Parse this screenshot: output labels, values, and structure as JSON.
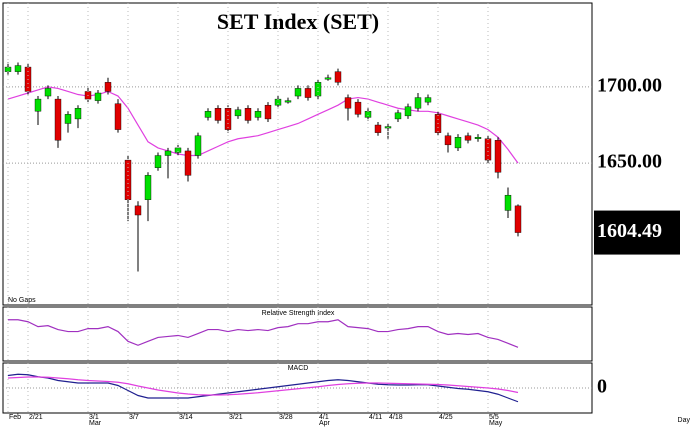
{
  "chart_data": [
    {
      "type": "candlestick",
      "title": "SET  Index  (SET)",
      "note": "No Gaps",
      "categories": [
        "Feb",
        null,
        "2/21",
        null,
        null,
        null,
        null,
        null,
        "3/1",
        null,
        null,
        null,
        "3/7",
        null,
        null,
        null,
        null,
        "3/14",
        null,
        null,
        null,
        null,
        "3/21",
        null,
        null,
        null,
        null,
        "3/28",
        null,
        null,
        null,
        "4/1",
        null,
        null,
        null,
        null,
        "4/11",
        null,
        "4/18",
        null,
        null,
        null,
        null,
        "4/25",
        null,
        null,
        null,
        null,
        "5/5",
        null,
        null,
        null
      ],
      "months": [
        null,
        null,
        null,
        null,
        null,
        null,
        null,
        null,
        "Mar",
        null,
        null,
        null,
        null,
        null,
        null,
        null,
        null,
        null,
        null,
        null,
        null,
        null,
        null,
        null,
        null,
        null,
        null,
        null,
        null,
        null,
        null,
        "Apr",
        null,
        null,
        null,
        null,
        null,
        null,
        null,
        null,
        null,
        null,
        null,
        null,
        null,
        null,
        null,
        null,
        "May",
        null,
        null,
        null
      ],
      "open": [
        1710,
        1710,
        1713,
        1684,
        1694,
        1692,
        1676,
        1679,
        1697,
        1691,
        1703,
        1689,
        1652,
        1622,
        1626,
        1647,
        1655,
        1657,
        1658,
        1655,
        1680,
        1686,
        1686,
        1681,
        1686,
        1680,
        1688,
        1688,
        1690,
        1694,
        1699,
        1694,
        1705,
        1710,
        1693,
        1690,
        1680,
        1675,
        1673,
        1679,
        1681,
        1686,
        1690,
        1682,
        1668,
        1660,
        1668,
        1666,
        1666,
        1665,
        1619,
        1622
      ],
      "high": [
        1716,
        1716,
        1715,
        1694,
        1701,
        1694,
        1684,
        1688,
        1700,
        1698,
        1706,
        1692,
        1655,
        1625,
        1644,
        1657,
        1660,
        1662,
        1660,
        1670,
        1686,
        1688,
        1688,
        1687,
        1688,
        1686,
        1690,
        1694,
        1693,
        1701,
        1701,
        1705,
        1708,
        1712,
        1695,
        1692,
        1686,
        1677,
        1676,
        1685,
        1689,
        1696,
        1695,
        1684,
        1670,
        1669,
        1670,
        1669,
        1668,
        1667,
        1634,
        1623
      ],
      "low": [
        1708,
        1708,
        1695,
        1675,
        1692,
        1660,
        1670,
        1673,
        1690,
        1689,
        1695,
        1670,
        1612,
        1579,
        1612,
        1645,
        1640,
        1655,
        1638,
        1653,
        1678,
        1676,
        1670,
        1679,
        1676,
        1678,
        1677,
        1686,
        1689,
        1692,
        1691,
        1692,
        1704,
        1701,
        1678,
        1680,
        1678,
        1668,
        1666,
        1677,
        1679,
        1684,
        1688,
        1668,
        1657,
        1658,
        1663,
        1664,
        1650,
        1640,
        1614,
        1602
      ],
      "close": [
        1713,
        1714,
        1697,
        1692,
        1699,
        1665,
        1682,
        1686,
        1692,
        1696,
        1697,
        1672,
        1626,
        1616,
        1642,
        1655,
        1658,
        1660,
        1642,
        1668,
        1684,
        1678,
        1672,
        1685,
        1678,
        1684,
        1679,
        1692,
        1691,
        1699,
        1693,
        1703,
        1706,
        1703,
        1686,
        1682,
        1684,
        1670,
        1674,
        1683,
        1687,
        1693,
        1693,
        1670,
        1662,
        1667,
        1665,
        1667,
        1652,
        1644,
        1629,
        1604.49
      ],
      "up_color": "#00e000",
      "down_color": "#e00000",
      "moving_average": {
        "color": "#e040e0",
        "values": [
          1692,
          1694,
          1696,
          1698,
          1700,
          1699,
          1697,
          1695,
          1694,
          1695,
          1697,
          1694,
          1686,
          1675,
          1664,
          1660,
          1658,
          1656,
          1655,
          1655,
          1658,
          1661,
          1664,
          1666,
          1667,
          1668,
          1670,
          1672,
          1674,
          1676,
          1679,
          1682,
          1685,
          1688,
          1692,
          1693,
          1692,
          1690,
          1688,
          1686,
          1685,
          1684,
          1684,
          1683,
          1681,
          1679,
          1677,
          1675,
          1672,
          1667,
          1659,
          1650
        ]
      },
      "ylim": [
        1557,
        1755
      ],
      "yticks": [
        {
          "value": 1650,
          "label": "1650.00"
        },
        {
          "value": 1700,
          "label": "1700.00"
        }
      ],
      "last_price": {
        "value": 1604.49,
        "label": "1604.49"
      },
      "x_axis_label": "Day",
      "grid": true
    },
    {
      "type": "line",
      "title": "Relative Strength Index",
      "ylim": [
        20,
        75
      ],
      "series": [
        {
          "color": "#a030c0",
          "values": [
            62,
            62,
            60,
            55,
            56,
            52,
            50,
            50,
            53,
            53,
            55,
            50,
            40,
            36,
            40,
            44,
            45,
            46,
            44,
            48,
            52,
            52,
            50,
            52,
            51,
            52,
            51,
            54,
            55,
            58,
            58,
            60,
            60,
            62,
            55,
            54,
            53,
            50,
            50,
            52,
            53,
            55,
            55,
            50,
            47,
            48,
            47,
            48,
            44,
            42,
            38,
            34
          ]
        }
      ]
    },
    {
      "type": "line",
      "title": "MACD",
      "ylim": [
        -10,
        10
      ],
      "yticks": [
        0
      ],
      "series": [
        {
          "color": "#202090",
          "values": [
            5,
            5.5,
            5.3,
            4.5,
            4,
            3,
            2.5,
            2,
            2,
            2,
            2,
            1,
            -1,
            -3,
            -4,
            -4,
            -4,
            -4,
            -4,
            -3.5,
            -3,
            -2.5,
            -2,
            -1.5,
            -1,
            -0.5,
            0,
            0.5,
            1,
            1.5,
            2,
            2.5,
            3,
            3.3,
            3,
            2.5,
            2,
            1.5,
            1.3,
            1.2,
            1.2,
            1.3,
            1.3,
            0.8,
            0.3,
            -0.2,
            -0.5,
            -1,
            -1.5,
            -2.5,
            -4,
            -5.5
          ]
        },
        {
          "color": "#e040e0",
          "values": [
            4,
            4.2,
            4.4,
            4.4,
            4.3,
            4,
            3.7,
            3.3,
            3,
            2.8,
            2.6,
            2.3,
            1.7,
            0.8,
            0,
            -0.8,
            -1.4,
            -2,
            -2.4,
            -2.7,
            -2.8,
            -2.8,
            -2.7,
            -2.5,
            -2.2,
            -1.9,
            -1.5,
            -1.1,
            -0.7,
            -0.3,
            0.1,
            0.5,
            1,
            1.4,
            1.7,
            1.9,
            2,
            2,
            1.9,
            1.8,
            1.7,
            1.6,
            1.5,
            1.4,
            1.2,
            0.9,
            0.6,
            0.3,
            0,
            -0.4,
            -1,
            -1.8
          ]
        }
      ]
    }
  ]
}
